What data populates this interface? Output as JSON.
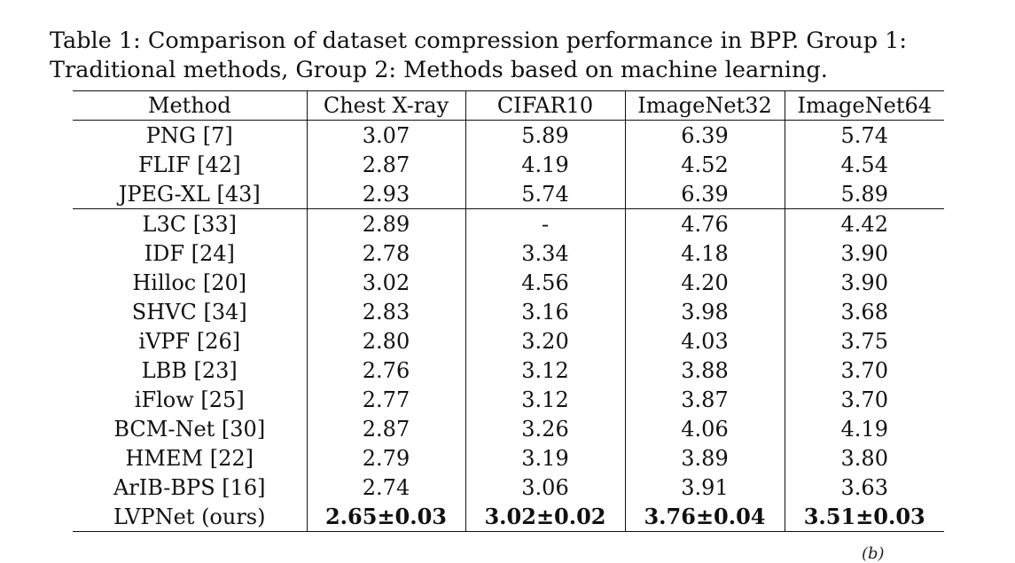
{
  "caption": {
    "line1": "Table 1: Comparison of dataset compression performance in BPP. Group 1:",
    "line2": "Traditional methods, Group 2: Methods based on machine learning."
  },
  "table": {
    "headers": [
      "Method",
      "Chest X-ray",
      "CIFAR10",
      "ImageNet32",
      "ImageNet64"
    ],
    "group1": [
      [
        "PNG [7]",
        "3.07",
        "5.89",
        "6.39",
        "5.74"
      ],
      [
        "FLIF [42]",
        "2.87",
        "4.19",
        "4.52",
        "4.54"
      ],
      [
        "JPEG-XL [43]",
        "2.93",
        "5.74",
        "6.39",
        "5.89"
      ]
    ],
    "group2": [
      [
        "L3C [33]",
        "2.89",
        "-",
        "4.76",
        "4.42"
      ],
      [
        "IDF [24]",
        "2.78",
        "3.34",
        "4.18",
        "3.90"
      ],
      [
        "Hilloc [20]",
        "3.02",
        "4.56",
        "4.20",
        "3.90"
      ],
      [
        "SHVC [34]",
        "2.83",
        "3.16",
        "3.98",
        "3.68"
      ],
      [
        "iVPF [26]",
        "2.80",
        "3.20",
        "4.03",
        "3.75"
      ],
      [
        "LBB [23]",
        "2.76",
        "3.12",
        "3.88",
        "3.70"
      ],
      [
        "iFlow [25]",
        "2.77",
        "3.12",
        "3.87",
        "3.70"
      ],
      [
        "BCM-Net [30]",
        "2.87",
        "3.26",
        "4.06",
        "4.19"
      ],
      [
        "HMEM [22]",
        "2.79",
        "3.19",
        "3.89",
        "3.80"
      ],
      [
        "ArIB-BPS [16]",
        "2.74",
        "3.06",
        "3.91",
        "3.63"
      ],
      [
        "LVPNet (ours)",
        "2.65±0.03",
        "3.02±0.02",
        "3.76±0.04",
        "3.51±0.03"
      ]
    ]
  },
  "footer_fragment": "(b)"
}
